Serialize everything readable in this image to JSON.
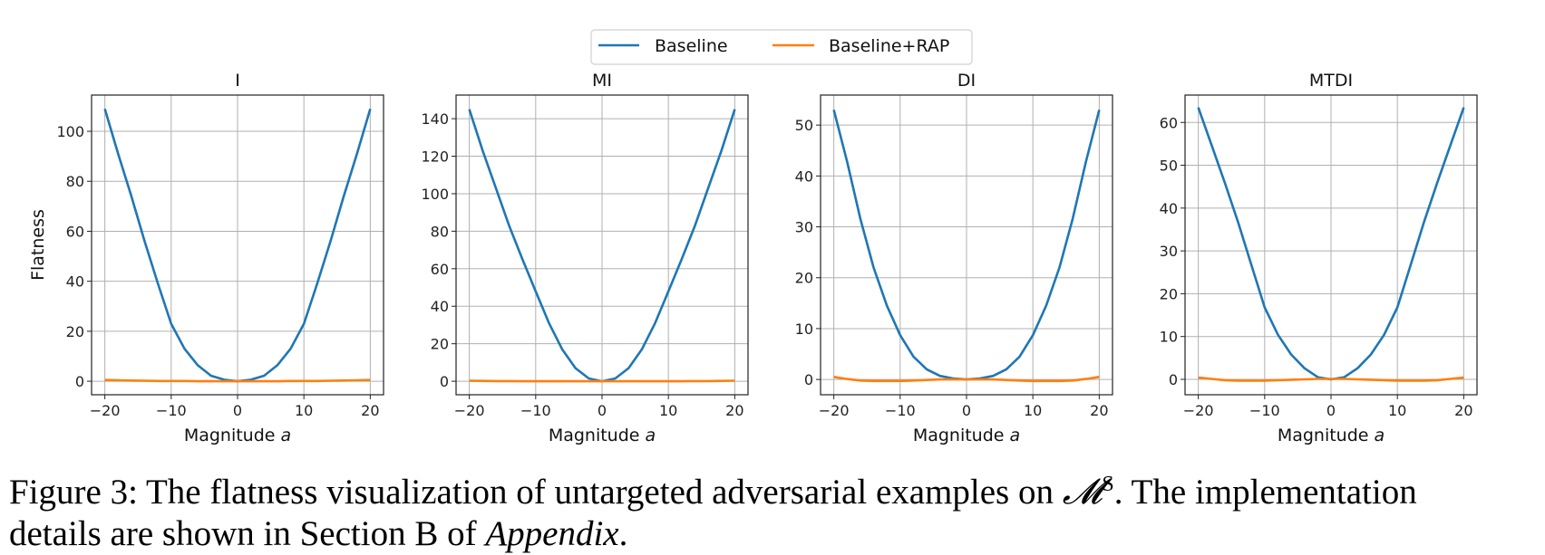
{
  "chart_data": [
    {
      "type": "line",
      "title": "I",
      "xlabel": "Magnitude",
      "xlabel_var": "a",
      "ylabel": "Flatness",
      "xlim": [
        -22,
        22
      ],
      "ylim": [
        -5.4,
        114.5
      ],
      "yticks": [
        0,
        20,
        40,
        60,
        80,
        100
      ],
      "xticks": [
        -20,
        -10,
        0,
        10,
        20
      ],
      "grid": true,
      "x": [
        -20,
        -18,
        -16,
        -14,
        -12,
        -10,
        -8,
        -6,
        -4,
        -2,
        0,
        2,
        4,
        6,
        8,
        10,
        12,
        14,
        16,
        18,
        20
      ],
      "series": [
        {
          "name": "Baseline",
          "color": "#1f77b4",
          "values": [
            109,
            91,
            74,
            56,
            39,
            23,
            13,
            6.4,
            2.2,
            0.6,
            0,
            0.6,
            2.2,
            6.4,
            13,
            23,
            39,
            56,
            74,
            91,
            109
          ]
        },
        {
          "name": "Baseline+RAP",
          "color": "#ff7f0e",
          "values": [
            0.5,
            0.4,
            0.3,
            0.2,
            0.1,
            0.1,
            0.1,
            0,
            0,
            0,
            0,
            0,
            0,
            0,
            0.1,
            0.1,
            0.1,
            0.2,
            0.3,
            0.4,
            0.5
          ]
        }
      ]
    },
    {
      "type": "line",
      "title": "MI",
      "xlabel": "Magnitude",
      "xlabel_var": "a",
      "ylabel": "",
      "xlim": [
        -22,
        22
      ],
      "ylim": [
        -7.2,
        152.6
      ],
      "yticks": [
        0,
        20,
        40,
        60,
        80,
        100,
        120,
        140
      ],
      "xticks": [
        -20,
        -10,
        0,
        10,
        20
      ],
      "grid": true,
      "x": [
        -20,
        -18,
        -16,
        -14,
        -12,
        -10,
        -8,
        -6,
        -4,
        -2,
        0,
        2,
        4,
        6,
        8,
        10,
        12,
        14,
        16,
        18,
        20
      ],
      "series": [
        {
          "name": "Baseline",
          "color": "#1f77b4",
          "values": [
            145,
            123,
            103,
            83,
            65,
            48,
            31,
            17,
            7,
            1.5,
            0,
            1.5,
            7,
            17,
            31,
            48,
            65,
            83,
            103,
            123,
            145
          ]
        },
        {
          "name": "Baseline+RAP",
          "color": "#ff7f0e",
          "values": [
            0.3,
            0.2,
            0.1,
            0.1,
            0,
            0,
            0,
            0,
            0,
            0,
            0,
            0,
            0,
            0,
            0,
            0,
            0,
            0.1,
            0.1,
            0.2,
            0.3
          ]
        }
      ]
    },
    {
      "type": "line",
      "title": "DI",
      "xlabel": "Magnitude",
      "xlabel_var": "a",
      "ylabel": "",
      "xlim": [
        -22,
        22
      ],
      "ylim": [
        -3.0,
        55.9
      ],
      "yticks": [
        0,
        10,
        20,
        30,
        40,
        50
      ],
      "xticks": [
        -20,
        -10,
        0,
        10,
        20
      ],
      "grid": true,
      "x": [
        -20,
        -18,
        -16,
        -14,
        -12,
        -10,
        -8,
        -6,
        -4,
        -2,
        0,
        2,
        4,
        6,
        8,
        10,
        12,
        14,
        16,
        18,
        20
      ],
      "series": [
        {
          "name": "Baseline",
          "color": "#1f77b4",
          "values": [
            53,
            42.8,
            31.6,
            22,
            14.5,
            8.7,
            4.5,
            2,
            0.7,
            0.2,
            0,
            0.2,
            0.7,
            2,
            4.5,
            8.7,
            14.5,
            22,
            31.6,
            42.8,
            53
          ]
        },
        {
          "name": "Baseline+RAP",
          "color": "#ff7f0e",
          "values": [
            0.5,
            0.1,
            -0.2,
            -0.3,
            -0.3,
            -0.3,
            -0.2,
            -0.1,
            0,
            0,
            0,
            0,
            0,
            -0.1,
            -0.2,
            -0.3,
            -0.3,
            -0.3,
            -0.2,
            0.1,
            0.5
          ]
        }
      ]
    },
    {
      "type": "line",
      "title": "MTDI",
      "xlabel": "Magnitude",
      "xlabel_var": "a",
      "ylabel": "",
      "xlim": [
        -22,
        22
      ],
      "ylim": [
        -3.6,
        66.4
      ],
      "yticks": [
        0,
        10,
        20,
        30,
        40,
        50,
        60
      ],
      "xticks": [
        -20,
        -10,
        0,
        10,
        20
      ],
      "grid": true,
      "x": [
        -20,
        -18,
        -16,
        -14,
        -12,
        -10,
        -8,
        -6,
        -4,
        -2,
        0,
        2,
        4,
        6,
        8,
        10,
        12,
        14,
        16,
        18,
        20
      ],
      "series": [
        {
          "name": "Baseline",
          "color": "#1f77b4",
          "values": [
            63.5,
            54.7,
            45.9,
            36.7,
            26.7,
            16.8,
            10.4,
            5.8,
            2.6,
            0.5,
            0,
            0.5,
            2.6,
            5.8,
            10.4,
            16.8,
            26.7,
            36.7,
            45.9,
            54.7,
            63.5
          ]
        },
        {
          "name": "Baseline+RAP",
          "color": "#ff7f0e",
          "values": [
            0.4,
            0.1,
            -0.2,
            -0.3,
            -0.3,
            -0.3,
            -0.2,
            -0.1,
            0,
            0.1,
            0.1,
            0.1,
            0,
            -0.1,
            -0.2,
            -0.3,
            -0.3,
            -0.3,
            -0.2,
            0.1,
            0.4
          ]
        }
      ]
    }
  ],
  "legend": {
    "placement": "top-center",
    "entries": [
      {
        "label": "Baseline",
        "color": "#1f77b4"
      },
      {
        "label": "Baseline+RAP",
        "color": "#ff7f0e"
      }
    ]
  },
  "caption": {
    "line1": "Figure 3: The flatness visualization of untargeted adversarial examples on ",
    "math": "𝓜",
    "sup": "S",
    "line1_end": ". The implementation",
    "line2": "details are shown in Section B of ",
    "italic": "Appendix",
    "line2_end": "."
  }
}
